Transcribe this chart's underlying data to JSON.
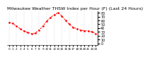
{
  "title": "Milwaukee Weather THSW Index per Hour (F) (Last 24 Hours)",
  "hours": [
    0,
    1,
    2,
    3,
    4,
    5,
    6,
    7,
    8,
    9,
    10,
    11,
    12,
    13,
    14,
    15,
    16,
    17,
    18,
    19,
    20,
    21,
    22,
    23
  ],
  "values": [
    55,
    52,
    45,
    38,
    32,
    28,
    25,
    27,
    35,
    45,
    58,
    68,
    75,
    80,
    72,
    60,
    50,
    42,
    38,
    35,
    33,
    32,
    30,
    25
  ],
  "ylim": [
    -5,
    85
  ],
  "yticks": [
    0,
    10,
    20,
    30,
    40,
    50,
    60,
    70,
    80
  ],
  "ytick_labels": [
    "0",
    "10",
    "20",
    "30",
    "40",
    "50",
    "60",
    "70",
    "80"
  ],
  "line_color": "#FF0000",
  "marker_color": "#FF0000",
  "bg_color": "#ffffff",
  "grid_color": "#aaaaaa",
  "title_color": "#000000",
  "title_fontsize": 4.5,
  "tick_fontsize": 3.5,
  "xtick_fontsize": 3.0
}
